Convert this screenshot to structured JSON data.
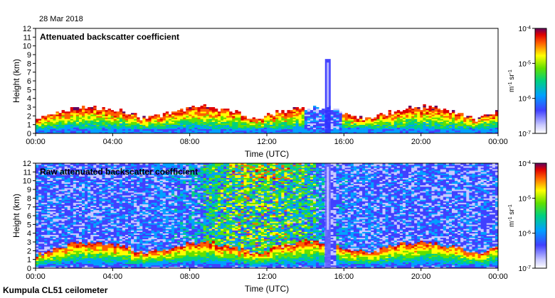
{
  "date_label": "28 Mar 2018",
  "footer_label": "Kumpula CL51 ceilometer",
  "chart_data": [
    {
      "type": "heatmap",
      "title": "Attenuated backscatter coefficient",
      "xlabel": "Time (UTC)",
      "ylabel": "Height (km)",
      "xlim": [
        "00:00",
        "24:00"
      ],
      "ylim": [
        0,
        12
      ],
      "x_ticks": [
        "00:00",
        "04:00",
        "08:00",
        "12:00",
        "16:00",
        "20:00",
        "00:00"
      ],
      "y_ticks": [
        0,
        1,
        2,
        3,
        4,
        5,
        6,
        7,
        8,
        9,
        10,
        11,
        12
      ],
      "colorbar": {
        "label": "m-1 sr-1",
        "scale": "log",
        "range": [
          1e-07,
          0.0001
        ],
        "tick_labels": [
          "10-7",
          "10-6",
          "10-5",
          "10-4"
        ]
      },
      "features": {
        "boundary_layer_top_km": 1.2,
        "cloud_layer_km": [
          1.0,
          3.0
        ],
        "tall_precip_column": {
          "time": "15:10",
          "top_km": 8.5
        }
      }
    },
    {
      "type": "heatmap",
      "title": "Raw attenuated backscatter coefficient",
      "xlabel": "Time (UTC)",
      "ylabel": "Height (km)",
      "xlim": [
        "00:00",
        "24:00"
      ],
      "ylim": [
        0,
        12
      ],
      "x_ticks": [
        "00:00",
        "04:00",
        "08:00",
        "12:00",
        "16:00",
        "20:00",
        "00:00"
      ],
      "y_ticks": [
        0,
        1,
        2,
        3,
        4,
        5,
        6,
        7,
        8,
        9,
        10,
        11,
        12
      ],
      "colorbar": {
        "label": "m-1 sr-1",
        "scale": "log",
        "range": [
          1e-07,
          0.0001
        ],
        "tick_labels": [
          "10-7",
          "10-6",
          "10-5",
          "10-4"
        ]
      },
      "features": {
        "noise_peak_time": "12:00",
        "tall_precip_column": {
          "time": "15:10",
          "top_km": 12
        }
      }
    }
  ]
}
